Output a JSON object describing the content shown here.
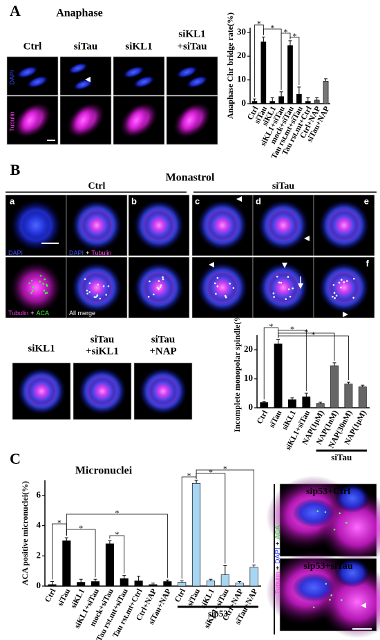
{
  "panel_a": {
    "label": "A",
    "title": "Anaphase",
    "columns": [
      [
        "Ctrl"
      ],
      [
        "siTau"
      ],
      [
        "siKL1"
      ],
      [
        "siKL1",
        "+siTau"
      ]
    ],
    "row_labels": [
      "DAPI",
      "Tubulin"
    ]
  },
  "panel_b": {
    "label": "B",
    "title": "Monastrol",
    "groups": [
      "Ctrl",
      "siTau"
    ],
    "subpanels": [
      "a",
      "b",
      "c",
      "d",
      "e",
      "f"
    ],
    "stain_labels": [
      [
        "DAPI"
      ],
      [
        "DAPI",
        "+",
        "Tubulin"
      ],
      [
        "Tubulin",
        "+",
        "ACA"
      ],
      [
        "All merge"
      ]
    ],
    "bottom_columns": [
      [
        "siKL1"
      ],
      [
        "siTau",
        "+siKL1"
      ],
      [
        "siTau",
        "+NAP"
      ]
    ]
  },
  "panel_c": {
    "label": "C",
    "title": "Micronuclei",
    "images": [
      "sip53+Ctrl",
      "sip53+siTau"
    ],
    "stain_label": [
      "Tubulin",
      "+",
      "DAPI",
      "+",
      "ACA"
    ]
  },
  "chart_data": [
    {
      "type": "bar",
      "y_label": "Anaphase Chr bridge rate(%)",
      "categories": [
        "Ctrl",
        "siTau",
        "siKL1",
        "siKL1+siTau",
        "mock+siTau",
        "Tau rst.mt+siTau",
        "Tau rst.mt+Ctrl",
        "Ctrl+NAP",
        "siTau+NAP"
      ],
      "values": [
        1,
        26,
        1,
        3,
        24.5,
        4,
        1,
        1.5,
        9.5
      ],
      "errors": [
        1,
        2,
        1.5,
        2,
        2,
        3,
        1.5,
        1,
        1
      ],
      "colors": [
        "#000000",
        "#000000",
        "#000000",
        "#000000",
        "#000000",
        "#000000",
        "#000000",
        "#555555",
        "#777777"
      ],
      "ylim": [
        0,
        32
      ],
      "yticks": [
        0,
        10,
        20,
        30
      ],
      "annotations": [
        "*",
        "*",
        "*",
        "*"
      ]
    },
    {
      "type": "bar",
      "y_label": "Incomplete monopolar spindle(%)",
      "categories": [
        "Ctrl",
        "siTau",
        "siKL1",
        "siKL1+siTau",
        "NAP(1μM)",
        "NAP(1nM)",
        "NAP(30nM)",
        "NAP(1μM)"
      ],
      "values": [
        1.8,
        22,
        2.8,
        3.8,
        1.5,
        14.5,
        8.2,
        7.2
      ],
      "errors": [
        0.4,
        1.5,
        0.6,
        1.2,
        0.4,
        1,
        0.6,
        0.6
      ],
      "colors": [
        "#000000",
        "#000000",
        "#000000",
        "#000000",
        "#666666",
        "#666666",
        "#666666",
        "#666666"
      ],
      "ylim": [
        0,
        25
      ],
      "yticks": [
        0,
        10,
        20
      ],
      "group_label": "siTau",
      "annotations": [
        "*",
        "*",
        "*",
        "*"
      ]
    },
    {
      "type": "bar",
      "y_label": "ACA positive micronuclei(%)",
      "categories": [
        "Ctrl",
        "siTau",
        "siKL1",
        "siKL1+siTau",
        "mock+siTau",
        "Tau rst.mt+siTau",
        "Tau rst.mt+Ctrl",
        "Ctrl+NAP",
        "siTau+NAP",
        "Ctrl",
        "siTau",
        "siKL1",
        "siKL1+siTau",
        "Ctrl+NAP",
        "siTau+NAP"
      ],
      "values": [
        0.1,
        3.0,
        0.25,
        0.3,
        2.8,
        0.5,
        0.35,
        0.1,
        0.3,
        0.25,
        6.8,
        0.35,
        0.75,
        0.2,
        1.25
      ],
      "errors": [
        0.2,
        0.2,
        0.2,
        0.15,
        0.2,
        0.2,
        0.3,
        0.1,
        0.1,
        0.1,
        0.2,
        0.1,
        0.6,
        0.1,
        0.15
      ],
      "colors": [
        "#000000",
        "#000000",
        "#000000",
        "#000000",
        "#000000",
        "#000000",
        "#000000",
        "#000000",
        "#000000",
        "#a8d5f2",
        "#a8d5f2",
        "#a8d5f2",
        "#a8d5f2",
        "#a8d5f2",
        "#a8d5f2"
      ],
      "ylim": [
        0,
        7
      ],
      "yticks": [
        0,
        2,
        4,
        6
      ],
      "group_label": "sip53",
      "annotations": [
        "*",
        "*",
        "*",
        "*",
        "*",
        "*",
        "*"
      ]
    }
  ]
}
